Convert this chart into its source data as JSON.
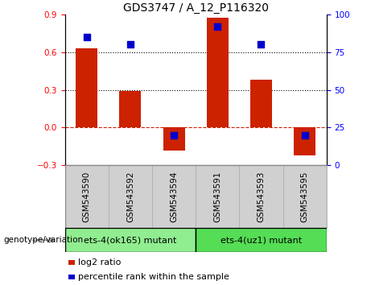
{
  "title": "GDS3747 / A_12_P116320",
  "samples": [
    "GSM543590",
    "GSM543592",
    "GSM543594",
    "GSM543591",
    "GSM543593",
    "GSM543595"
  ],
  "log2_ratio": [
    0.63,
    0.29,
    -0.18,
    0.87,
    0.38,
    -0.22
  ],
  "percentile_rank": [
    85,
    80,
    20,
    92,
    80,
    20
  ],
  "groups": [
    {
      "label": "ets-4(ok165) mutant",
      "indices": [
        0,
        1,
        2
      ],
      "color": "#90EE90"
    },
    {
      "label": "ets-4(uz1) mutant",
      "indices": [
        3,
        4,
        5
      ],
      "color": "#55DD55"
    }
  ],
  "ylim_left": [
    -0.3,
    0.9
  ],
  "ylim_right": [
    0,
    100
  ],
  "yticks_left": [
    -0.3,
    0.0,
    0.3,
    0.6,
    0.9
  ],
  "yticks_right": [
    0,
    25,
    50,
    75,
    100
  ],
  "bar_color": "#CC2200",
  "dot_color": "#0000CC",
  "zero_line_color": "#CC2200",
  "bar_width": 0.5,
  "dot_size": 35,
  "title_fontsize": 10,
  "tick_fontsize": 7.5,
  "legend_fontsize": 8,
  "sample_label_fontsize": 7.5,
  "group_label_fontsize": 8,
  "genotype_label": "genotype/variation"
}
